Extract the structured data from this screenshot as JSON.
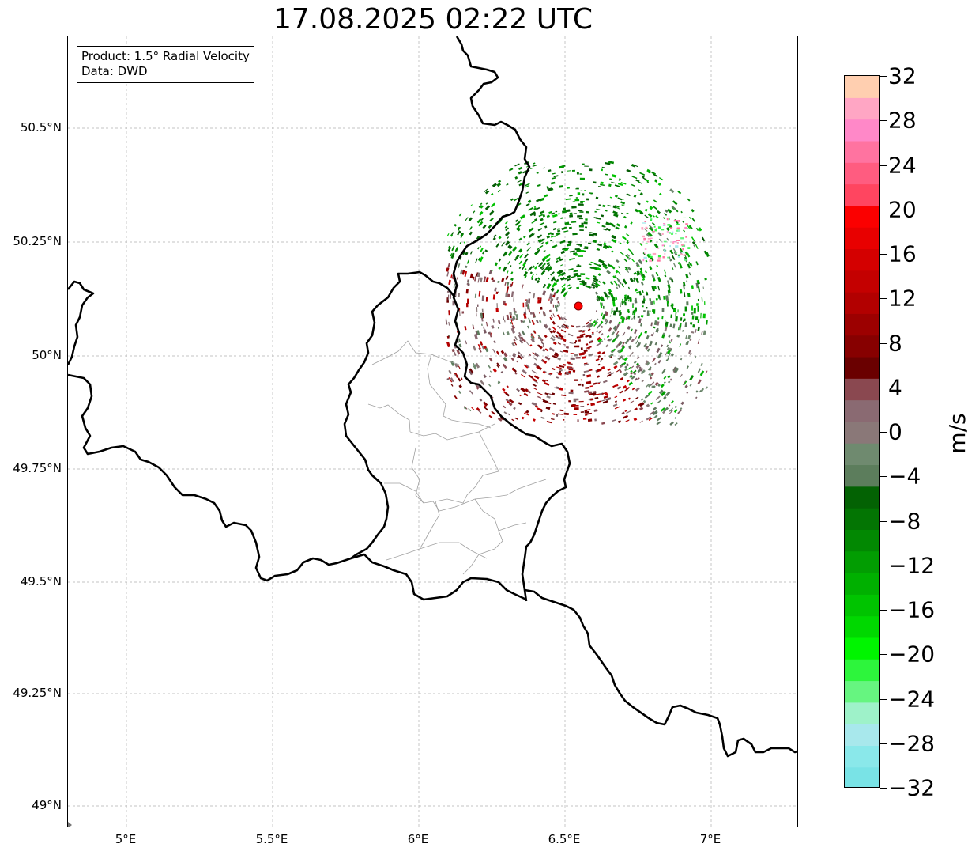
{
  "map": {
    "title": "17.08.2025 02:22 UTC",
    "info": {
      "product": "Product: 1.5° Radial Velocity",
      "data": "Data: DWD"
    },
    "lat_labels": [
      "50.5°N",
      "50.25°N",
      "50°N",
      "49.75°N",
      "49.5°N",
      "49.25°N",
      "49°N"
    ],
    "lon_labels": [
      "5°E",
      "5.5°E",
      "6°E",
      "6.5°E",
      "7°E"
    ],
    "radar_site": {
      "lat": 50.11,
      "lon": 6.548,
      "marker_color": "#ff0000"
    },
    "extent": {
      "lon_min": 4.8,
      "lon_max": 7.3,
      "lat_min": 48.95,
      "lat_max": 50.7
    },
    "grid": true,
    "colors": {
      "border": "#000000",
      "admin_lines": "#a0a0a0",
      "gridline": "#b0b0b0"
    }
  },
  "colorbar": {
    "unit": "m/s",
    "vmin": -32,
    "vmax": 32,
    "tick_labels": [
      "32",
      "28",
      "24",
      "20",
      "16",
      "12",
      "8",
      "4",
      "0",
      "−4",
      "−8",
      "−12",
      "−16",
      "−20",
      "−24",
      "−28",
      "−32"
    ],
    "colors_bottom_to_top": [
      "#79e3e6",
      "#8ae8ea",
      "#a8e8ec",
      "#9ef2c9",
      "#66f580",
      "#2df53c",
      "#00f500",
      "#00d800",
      "#00c400",
      "#00b000",
      "#029d02",
      "#028802",
      "#037503",
      "#036203",
      "#5c7d5c",
      "#6f8a6f",
      "#8a7878",
      "#8a6a72",
      "#8a4850",
      "#6a0000",
      "#870000",
      "#9c0000",
      "#b20000",
      "#c40000",
      "#d40000",
      "#e80000",
      "#fb0000",
      "#ff4560",
      "#ff5c80",
      "#ff73a0",
      "#ff88c8",
      "#ffa6c4",
      "#ffcfb0"
    ]
  }
}
